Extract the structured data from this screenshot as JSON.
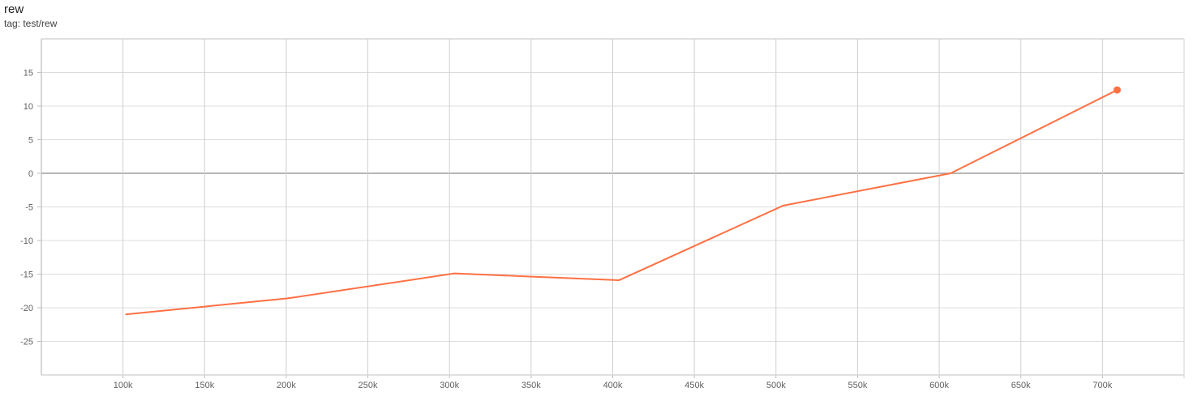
{
  "chart_data": {
    "type": "line",
    "title": "rew",
    "subtitle": "tag: test/rew",
    "xlabel": "",
    "ylabel": "",
    "xlim": [
      50000,
      750000
    ],
    "ylim": [
      -30,
      20
    ],
    "grid": true,
    "x_ticks": [
      100000,
      150000,
      200000,
      250000,
      300000,
      350000,
      400000,
      450000,
      500000,
      550000,
      600000,
      650000,
      700000
    ],
    "x_tick_labels": [
      "100k",
      "150k",
      "200k",
      "250k",
      "300k",
      "350k",
      "400k",
      "450k",
      "500k",
      "550k",
      "600k",
      "650k",
      "700k"
    ],
    "y_ticks": [
      15,
      10,
      5,
      0,
      -5,
      -10,
      -15,
      -20,
      -25
    ],
    "y_tick_labels": [
      "15",
      "10",
      "5",
      "0",
      "-5",
      "-10",
      "-15",
      "-20",
      "-25"
    ],
    "series": [
      {
        "color": "#ff7043",
        "x": [
          101500,
          201000,
          303000,
          404000,
          504500,
          607000,
          709000
        ],
        "y": [
          -21.0,
          -18.6,
          -14.9,
          -15.9,
          -4.8,
          0.0,
          12.4
        ]
      }
    ]
  }
}
